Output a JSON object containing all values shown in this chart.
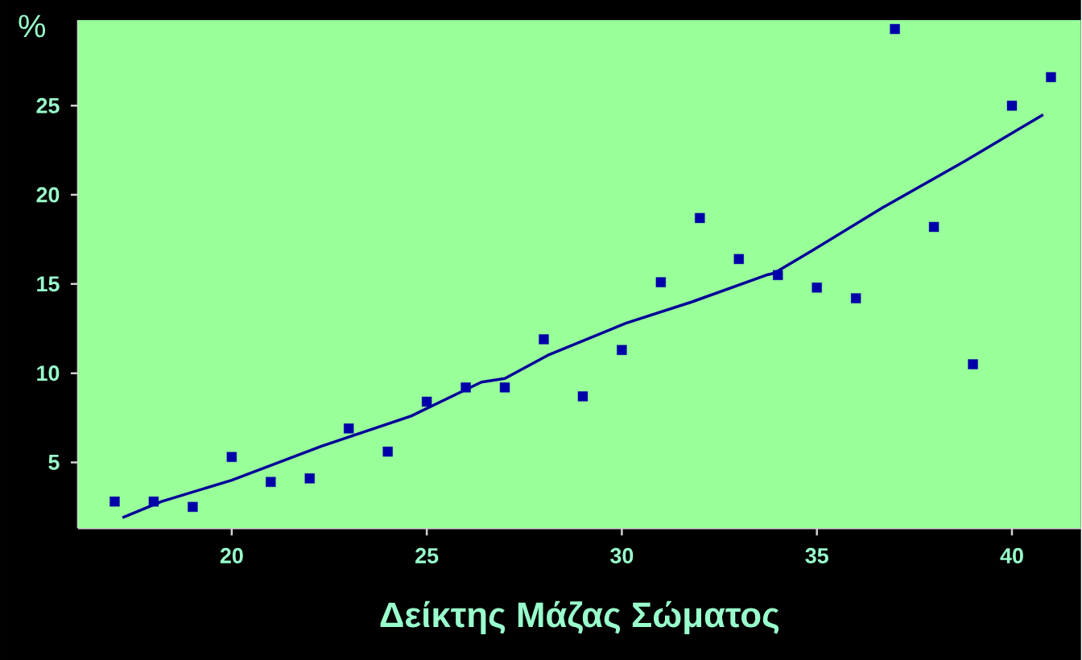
{
  "chart_data": {
    "type": "scatter",
    "xlabel": "Δείκτης Μάζας Σώματος",
    "ylabel": "%",
    "xlim": [
      16.06,
      41.77
    ],
    "ylim": [
      1.3,
      29.8
    ],
    "xticks": [
      20,
      25,
      30,
      35,
      40
    ],
    "yticks": [
      5,
      10,
      15,
      20,
      25
    ],
    "marker": "square",
    "series": [
      {
        "color": "#0000aa",
        "x": [
          17,
          18,
          19,
          20,
          21,
          22,
          23,
          24,
          25,
          26,
          27,
          28,
          29,
          30,
          31,
          32,
          33,
          34,
          35,
          36,
          37,
          38,
          39,
          40,
          41
        ],
        "values": [
          2.8,
          2.8,
          2.5,
          5.3,
          3.9,
          4.1,
          6.9,
          5.6,
          8.4,
          9.2,
          9.2,
          11.9,
          8.7,
          11.3,
          15.1,
          18.7,
          16.4,
          15.5,
          14.8,
          14.2,
          29.3,
          18.2,
          10.5,
          25.0,
          26.6
        ]
      },
      {
        "type": "line",
        "color": "#000099",
        "marker": "none",
        "line_style": "solid",
        "x": [
          17.2,
          18.2,
          20,
          22.3,
          24.6,
          26.4,
          27,
          28.1,
          30.1,
          31.8,
          33.7,
          33.9,
          34.9,
          36.7,
          38.8,
          40.8
        ],
        "values": [
          1.9,
          2.8,
          4.0,
          5.9,
          7.6,
          9.5,
          9.7,
          11.0,
          12.8,
          14.0,
          15.5,
          15.6,
          16.9,
          19.3,
          21.9,
          24.5
        ]
      }
    ]
  }
}
